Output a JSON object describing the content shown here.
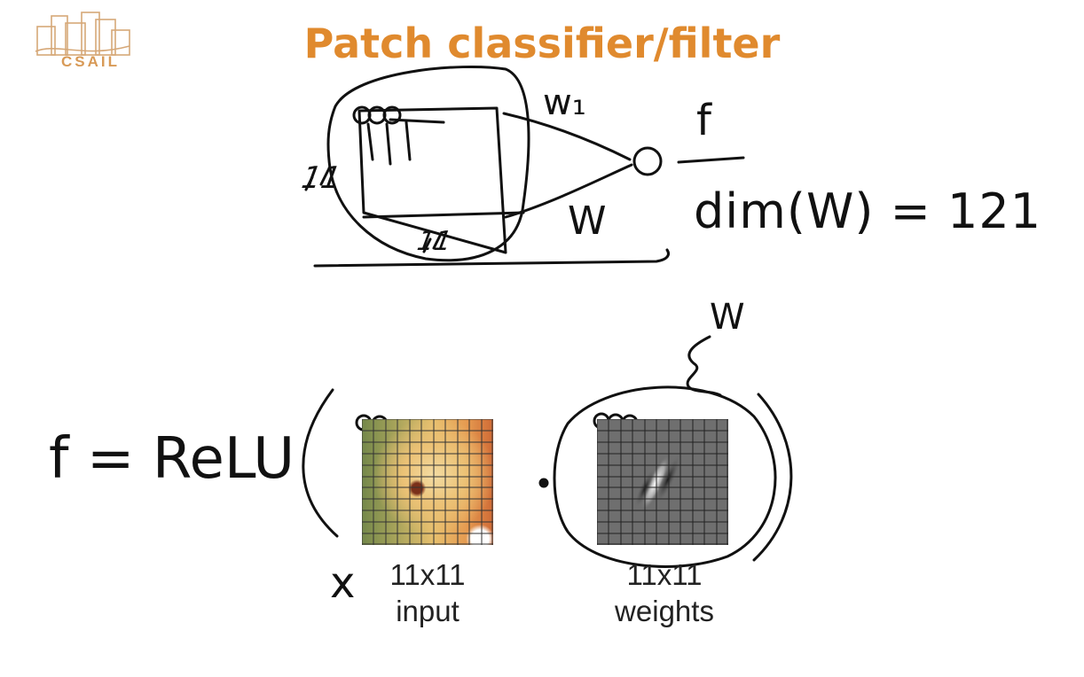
{
  "slide": {
    "title": "Patch classifier/filter",
    "logo_text": "CSAIL"
  },
  "sketch": {
    "weight_label_top": "w₁",
    "output_label": "f",
    "weights_label": "W",
    "dim_equation": "dim(W) = 121",
    "side_mark": "11",
    "bottom_mark": "11",
    "w_annotation": "W"
  },
  "equation": {
    "lhs": "f = ReLU",
    "input_symbol": "x",
    "dot": "•"
  },
  "captions": {
    "input_line1": "11x11",
    "input_line2": "input",
    "weights_line1": "11x11",
    "weights_line2": "weights"
  },
  "colors": {
    "title": "#e08a2e",
    "logo": "#d89a57",
    "ink": "#111111"
  }
}
